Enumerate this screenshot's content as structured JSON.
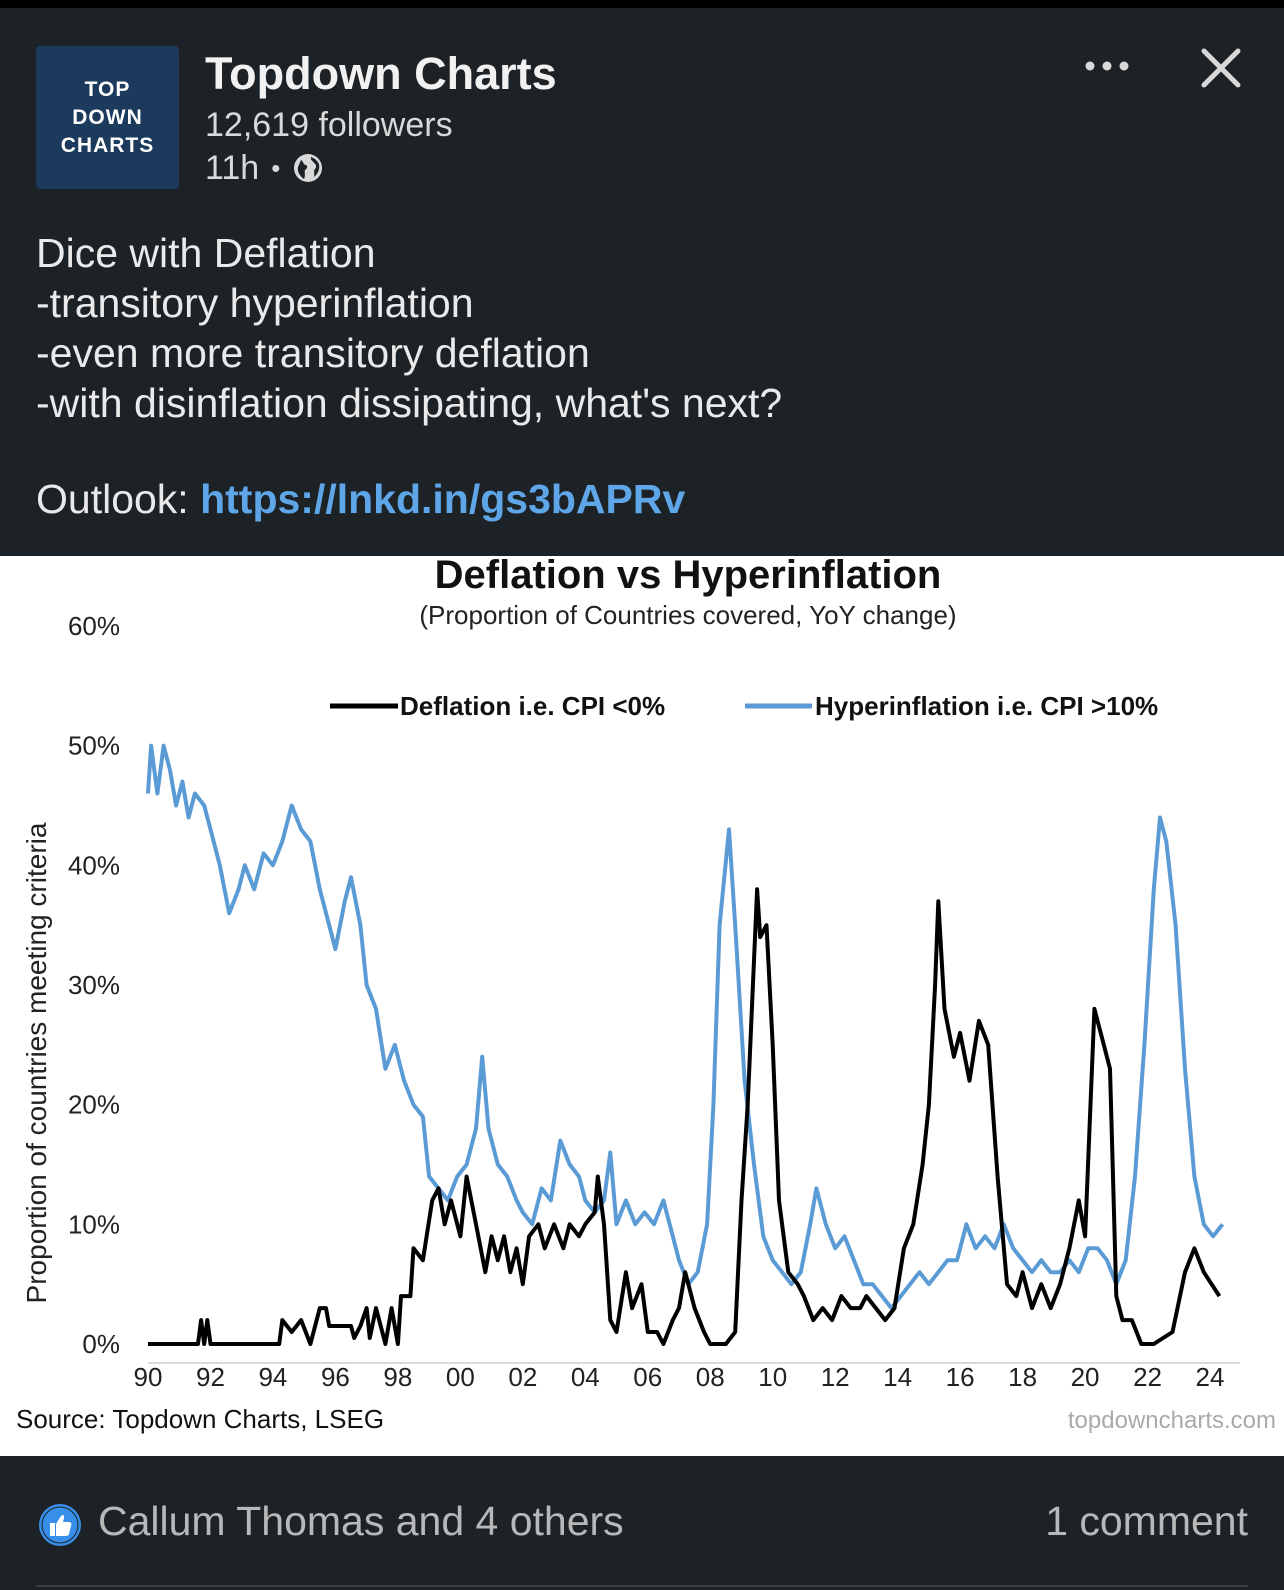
{
  "post": {
    "logo_lines": [
      "TOP",
      "DOWN",
      "CHARTS"
    ],
    "author": "Topdown Charts",
    "followers": "12,619 followers",
    "time": "11h",
    "separator": "•",
    "visibility_icon": "globe-icon",
    "more_icon": "more-icon",
    "close_icon": "close-icon",
    "text_lines": [
      "Dice with Deflation",
      "-transitory hyperinflation",
      "-even more transitory deflation",
      "-with disinflation dissipating, what's next?"
    ],
    "outlook_label": "Outlook: ",
    "outlook_link": "https://lnkd.in/gs3bAPRv"
  },
  "footer": {
    "reaction_icon": "like-icon",
    "reactions": "Callum Thomas and 4 others",
    "comments": "1 comment"
  },
  "colors": {
    "background": "#1d2226",
    "link": "#5ea6e8",
    "deflation": "#000000",
    "hyperinflation": "#5b9bd5"
  },
  "chart_data": {
    "type": "line",
    "title": "Deflation vs Hyperinflation",
    "subtitle": "(Proportion of Countries covered, YoY change)",
    "ylabel": "Proportion of countries meeting criteria",
    "xlabel": "",
    "x_ticks": [
      "90",
      "92",
      "94",
      "96",
      "98",
      "00",
      "02",
      "04",
      "06",
      "08",
      "10",
      "12",
      "14",
      "16",
      "18",
      "20",
      "22",
      "24"
    ],
    "y_ticks": [
      "0%",
      "10%",
      "20%",
      "30%",
      "40%",
      "50%",
      "60%"
    ],
    "ylim": [
      0,
      60
    ],
    "xlim": [
      1990,
      2024.5
    ],
    "legend_position": "top",
    "grid": false,
    "source": "Source: Topdown Charts, LSEG",
    "watermark": "topdowncharts.com",
    "series": [
      {
        "name": "Deflation i.e. CPI <0%",
        "color": "#000000",
        "points": [
          [
            1990.0,
            0
          ],
          [
            1991.6,
            0
          ],
          [
            1991.7,
            2
          ],
          [
            1991.8,
            0
          ],
          [
            1991.9,
            2
          ],
          [
            1992.0,
            0
          ],
          [
            1994.2,
            0
          ],
          [
            1994.3,
            2
          ],
          [
            1994.6,
            1
          ],
          [
            1994.9,
            2
          ],
          [
            1995.2,
            0
          ],
          [
            1995.5,
            3
          ],
          [
            1995.7,
            3
          ],
          [
            1995.8,
            1.5
          ],
          [
            1996.5,
            1.5
          ],
          [
            1996.6,
            0.5
          ],
          [
            1996.8,
            1.5
          ],
          [
            1997.0,
            3
          ],
          [
            1997.1,
            0.5
          ],
          [
            1997.3,
            3
          ],
          [
            1997.5,
            1
          ],
          [
            1997.6,
            0
          ],
          [
            1997.8,
            3
          ],
          [
            1998.0,
            0
          ],
          [
            1998.1,
            4
          ],
          [
            1998.4,
            4
          ],
          [
            1998.5,
            8
          ],
          [
            1998.8,
            7
          ],
          [
            1999.1,
            12
          ],
          [
            1999.3,
            13
          ],
          [
            1999.5,
            10
          ],
          [
            1999.7,
            12
          ],
          [
            2000.0,
            9
          ],
          [
            2000.2,
            14
          ],
          [
            2000.5,
            10
          ],
          [
            2000.8,
            6
          ],
          [
            2001.0,
            9
          ],
          [
            2001.2,
            7
          ],
          [
            2001.4,
            9
          ],
          [
            2001.6,
            6
          ],
          [
            2001.8,
            8
          ],
          [
            2002.0,
            5
          ],
          [
            2002.2,
            9
          ],
          [
            2002.5,
            10
          ],
          [
            2002.7,
            8
          ],
          [
            2003.0,
            10
          ],
          [
            2003.3,
            8
          ],
          [
            2003.5,
            10
          ],
          [
            2003.8,
            9
          ],
          [
            2004.0,
            10
          ],
          [
            2004.3,
            11
          ],
          [
            2004.4,
            14
          ],
          [
            2004.6,
            10
          ],
          [
            2004.8,
            2
          ],
          [
            2005.0,
            1
          ],
          [
            2005.3,
            6
          ],
          [
            2005.5,
            3
          ],
          [
            2005.8,
            5
          ],
          [
            2006.0,
            1
          ],
          [
            2006.3,
            1
          ],
          [
            2006.5,
            0
          ],
          [
            2006.8,
            2
          ],
          [
            2007.0,
            3
          ],
          [
            2007.2,
            6
          ],
          [
            2007.5,
            3
          ],
          [
            2007.8,
            1
          ],
          [
            2008.0,
            0
          ],
          [
            2008.5,
            0
          ],
          [
            2008.8,
            1
          ],
          [
            2009.0,
            12
          ],
          [
            2009.2,
            20
          ],
          [
            2009.5,
            38
          ],
          [
            2009.6,
            34
          ],
          [
            2009.8,
            35
          ],
          [
            2010.0,
            25
          ],
          [
            2010.2,
            12
          ],
          [
            2010.5,
            6
          ],
          [
            2010.8,
            5
          ],
          [
            2011.0,
            4
          ],
          [
            2011.3,
            2
          ],
          [
            2011.6,
            3
          ],
          [
            2011.9,
            2
          ],
          [
            2012.2,
            4
          ],
          [
            2012.5,
            3
          ],
          [
            2012.8,
            3
          ],
          [
            2013.0,
            4
          ],
          [
            2013.3,
            3
          ],
          [
            2013.6,
            2
          ],
          [
            2013.9,
            3
          ],
          [
            2014.2,
            8
          ],
          [
            2014.5,
            10
          ],
          [
            2014.8,
            15
          ],
          [
            2015.0,
            20
          ],
          [
            2015.2,
            30
          ],
          [
            2015.3,
            37
          ],
          [
            2015.5,
            28
          ],
          [
            2015.8,
            24
          ],
          [
            2016.0,
            26
          ],
          [
            2016.3,
            22
          ],
          [
            2016.6,
            27
          ],
          [
            2016.9,
            25
          ],
          [
            2017.2,
            14
          ],
          [
            2017.5,
            5
          ],
          [
            2017.8,
            4
          ],
          [
            2018.0,
            6
          ],
          [
            2018.3,
            3
          ],
          [
            2018.6,
            5
          ],
          [
            2018.9,
            3
          ],
          [
            2019.2,
            5
          ],
          [
            2019.5,
            8
          ],
          [
            2019.8,
            12
          ],
          [
            2020.0,
            9
          ],
          [
            2020.3,
            28
          ],
          [
            2020.5,
            26
          ],
          [
            2020.8,
            23
          ],
          [
            2021.0,
            4
          ],
          [
            2021.2,
            2
          ],
          [
            2021.5,
            2
          ],
          [
            2021.8,
            0
          ],
          [
            2022.2,
            0
          ],
          [
            2022.5,
            0.5
          ],
          [
            2022.8,
            1
          ],
          [
            2023.2,
            6
          ],
          [
            2023.5,
            8
          ],
          [
            2023.8,
            6
          ],
          [
            2024.3,
            4
          ]
        ]
      },
      {
        "name": "Hyperinflation i.e. CPI >10%",
        "color": "#5b9bd5",
        "points": [
          [
            1990.0,
            46
          ],
          [
            1990.1,
            50
          ],
          [
            1990.3,
            46
          ],
          [
            1990.5,
            50
          ],
          [
            1990.7,
            48
          ],
          [
            1990.9,
            45
          ],
          [
            1991.1,
            47
          ],
          [
            1991.3,
            44
          ],
          [
            1991.5,
            46
          ],
          [
            1991.8,
            45
          ],
          [
            1992.0,
            43
          ],
          [
            1992.3,
            40
          ],
          [
            1992.6,
            36
          ],
          [
            1992.9,
            38
          ],
          [
            1993.1,
            40
          ],
          [
            1993.4,
            38
          ],
          [
            1993.7,
            41
          ],
          [
            1994.0,
            40
          ],
          [
            1994.3,
            42
          ],
          [
            1994.6,
            45
          ],
          [
            1994.9,
            43
          ],
          [
            1995.2,
            42
          ],
          [
            1995.5,
            38
          ],
          [
            1995.8,
            35
          ],
          [
            1996.0,
            33
          ],
          [
            1996.3,
            37
          ],
          [
            1996.5,
            39
          ],
          [
            1996.8,
            35
          ],
          [
            1997.0,
            30
          ],
          [
            1997.3,
            28
          ],
          [
            1997.6,
            23
          ],
          [
            1997.9,
            25
          ],
          [
            1998.2,
            22
          ],
          [
            1998.5,
            20
          ],
          [
            1998.8,
            19
          ],
          [
            1999.0,
            14
          ],
          [
            1999.3,
            13
          ],
          [
            1999.6,
            12
          ],
          [
            1999.9,
            14
          ],
          [
            2000.2,
            15
          ],
          [
            2000.5,
            18
          ],
          [
            2000.7,
            24
          ],
          [
            2000.9,
            18
          ],
          [
            2001.2,
            15
          ],
          [
            2001.5,
            14
          ],
          [
            2001.8,
            12
          ],
          [
            2002.0,
            11
          ],
          [
            2002.3,
            10
          ],
          [
            2002.6,
            13
          ],
          [
            2002.9,
            12
          ],
          [
            2003.2,
            17
          ],
          [
            2003.5,
            15
          ],
          [
            2003.8,
            14
          ],
          [
            2004.0,
            12
          ],
          [
            2004.3,
            11
          ],
          [
            2004.6,
            12
          ],
          [
            2004.8,
            16
          ],
          [
            2005.0,
            10
          ],
          [
            2005.3,
            12
          ],
          [
            2005.6,
            10
          ],
          [
            2005.9,
            11
          ],
          [
            2006.2,
            10
          ],
          [
            2006.5,
            12
          ],
          [
            2006.8,
            9
          ],
          [
            2007.0,
            7
          ],
          [
            2007.3,
            5
          ],
          [
            2007.6,
            6
          ],
          [
            2007.9,
            10
          ],
          [
            2008.1,
            20
          ],
          [
            2008.3,
            35
          ],
          [
            2008.6,
            43
          ],
          [
            2008.8,
            35
          ],
          [
            2009.1,
            22
          ],
          [
            2009.4,
            15
          ],
          [
            2009.7,
            9
          ],
          [
            2010.0,
            7
          ],
          [
            2010.3,
            6
          ],
          [
            2010.6,
            5
          ],
          [
            2010.9,
            6
          ],
          [
            2011.2,
            10
          ],
          [
            2011.4,
            13
          ],
          [
            2011.7,
            10
          ],
          [
            2012.0,
            8
          ],
          [
            2012.3,
            9
          ],
          [
            2012.6,
            7
          ],
          [
            2012.9,
            5
          ],
          [
            2013.2,
            5
          ],
          [
            2013.5,
            4
          ],
          [
            2013.8,
            3
          ],
          [
            2014.1,
            4
          ],
          [
            2014.4,
            5
          ],
          [
            2014.7,
            6
          ],
          [
            2015.0,
            5
          ],
          [
            2015.3,
            6
          ],
          [
            2015.6,
            7
          ],
          [
            2015.9,
            7
          ],
          [
            2016.2,
            10
          ],
          [
            2016.5,
            8
          ],
          [
            2016.8,
            9
          ],
          [
            2017.1,
            8
          ],
          [
            2017.4,
            10
          ],
          [
            2017.7,
            8
          ],
          [
            2018.0,
            7
          ],
          [
            2018.3,
            6
          ],
          [
            2018.6,
            7
          ],
          [
            2018.9,
            6
          ],
          [
            2019.2,
            6
          ],
          [
            2019.5,
            7
          ],
          [
            2019.8,
            6
          ],
          [
            2020.1,
            8
          ],
          [
            2020.4,
            8
          ],
          [
            2020.7,
            7
          ],
          [
            2021.0,
            5
          ],
          [
            2021.3,
            7
          ],
          [
            2021.6,
            14
          ],
          [
            2021.9,
            25
          ],
          [
            2022.2,
            38
          ],
          [
            2022.4,
            44
          ],
          [
            2022.6,
            42
          ],
          [
            2022.9,
            35
          ],
          [
            2023.2,
            23
          ],
          [
            2023.5,
            14
          ],
          [
            2023.8,
            10
          ],
          [
            2024.1,
            9
          ],
          [
            2024.4,
            10
          ]
        ]
      }
    ]
  }
}
